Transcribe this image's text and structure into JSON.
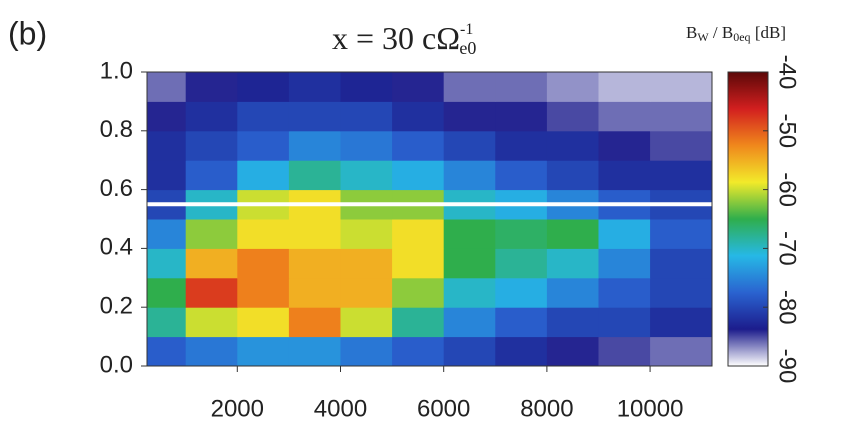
{
  "chart_data": {
    "type": "heatmap",
    "panel_label": "(b)",
    "title": {
      "main": "x = 30 cΩ",
      "sup": "-1",
      "sub": "e0"
    },
    "colorbar_title": {
      "b1": "B",
      "s1": "W",
      "mid": " / B",
      "s2": "0eq",
      "end": " [dB]"
    },
    "xbins": [
      250,
      1000,
      2000,
      3000,
      4000,
      5000,
      6000,
      7000,
      8000,
      9000,
      10000,
      11200
    ],
    "ybins": [
      0,
      0.1,
      0.2,
      0.3,
      0.4,
      0.5,
      0.6,
      0.7,
      0.8,
      0.9,
      1.0
    ],
    "z": [
      [
        -78,
        -76,
        -74,
        -74,
        -76,
        -78,
        -80,
        -82,
        -84,
        -85,
        -86
      ],
      [
        -68,
        -60,
        -58,
        -52,
        -60,
        -68,
        -75,
        -78,
        -80,
        -80,
        -82
      ],
      [
        -65,
        -48,
        -52,
        -55,
        -55,
        -62,
        -70,
        -72,
        -75,
        -78,
        -80
      ],
      [
        -70,
        -55,
        -52,
        -55,
        -55,
        -58,
        -65,
        -68,
        -70,
        -75,
        -80
      ],
      [
        -75,
        -62,
        -58,
        -58,
        -60,
        -58,
        -65,
        -66,
        -65,
        -72,
        -78
      ],
      [
        -80,
        -70,
        -60,
        -58,
        -62,
        -62,
        -70,
        -72,
        -75,
        -78,
        -80
      ],
      [
        -82,
        -78,
        -72,
        -68,
        -70,
        -72,
        -75,
        -78,
        -80,
        -82,
        -82
      ],
      [
        -82,
        -80,
        -78,
        -75,
        -76,
        -78,
        -80,
        -82,
        -82,
        -84,
        -85
      ],
      [
        -84,
        -82,
        -80,
        -80,
        -80,
        -82,
        -84,
        -84,
        -85,
        -86,
        -86
      ],
      [
        -86,
        -84,
        -83,
        -82,
        -83,
        -84,
        -86,
        -86,
        -87,
        -88,
        -88
      ]
    ],
    "xlim": [
      250,
      11200
    ],
    "xticks": [
      2000,
      4000,
      6000,
      8000,
      10000
    ],
    "ylim": [
      0,
      1
    ],
    "yticks": [
      {
        "value": 0,
        "label": "0.0"
      },
      0.2,
      0.4,
      0.6,
      0.8,
      {
        "value": 1,
        "label": "1.0"
      }
    ],
    "zlim": [
      -90,
      -40
    ],
    "zticks": [
      -40,
      -50,
      -60,
      -70,
      -80,
      -90
    ],
    "colormap": [
      "#ffffff",
      "#1c1c8c",
      "#2a63d0",
      "#26b8e6",
      "#2fae4c",
      "#f2ea2a",
      "#f0881c",
      "#d21f1f",
      "#5c0808"
    ],
    "hline": 0.55,
    "hline_color": "#ffffff"
  }
}
